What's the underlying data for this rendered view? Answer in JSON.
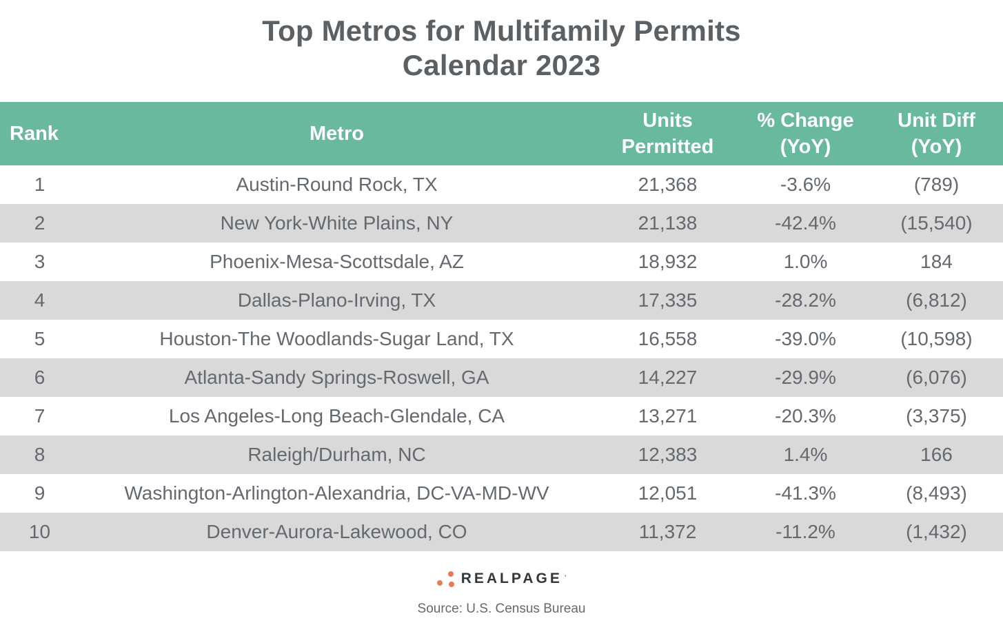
{
  "title": {
    "line1": "Top Metros for Multifamily Permits",
    "line2": "Calendar 2023"
  },
  "table": {
    "columns": [
      {
        "label": "Rank"
      },
      {
        "label": "Metro"
      },
      {
        "label": "Units\nPermitted"
      },
      {
        "label": "% Change\n(YoY)"
      },
      {
        "label": "Unit Diff\n(YoY)"
      }
    ],
    "rows": [
      {
        "rank": "1",
        "metro": "Austin-Round Rock, TX",
        "units": "21,368",
        "pct_change": "-3.6%",
        "unit_diff": "(789)"
      },
      {
        "rank": "2",
        "metro": "New York-White Plains, NY",
        "units": "21,138",
        "pct_change": "-42.4%",
        "unit_diff": "(15,540)"
      },
      {
        "rank": "3",
        "metro": "Phoenix-Mesa-Scottsdale, AZ",
        "units": "18,932",
        "pct_change": "1.0%",
        "unit_diff": "184"
      },
      {
        "rank": "4",
        "metro": "Dallas-Plano-Irving, TX",
        "units": "17,335",
        "pct_change": "-28.2%",
        "unit_diff": "(6,812)"
      },
      {
        "rank": "5",
        "metro": "Houston-The Woodlands-Sugar Land, TX",
        "units": "16,558",
        "pct_change": "-39.0%",
        "unit_diff": "(10,598)"
      },
      {
        "rank": "6",
        "metro": "Atlanta-Sandy Springs-Roswell, GA",
        "units": "14,227",
        "pct_change": "-29.9%",
        "unit_diff": "(6,076)"
      },
      {
        "rank": "7",
        "metro": "Los Angeles-Long Beach-Glendale, CA",
        "units": "13,271",
        "pct_change": "-20.3%",
        "unit_diff": "(3,375)"
      },
      {
        "rank": "8",
        "metro": "Raleigh/Durham, NC",
        "units": "12,383",
        "pct_change": "1.4%",
        "unit_diff": "166"
      },
      {
        "rank": "9",
        "metro": "Washington-Arlington-Alexandria, DC-VA-MD-WV",
        "units": "12,051",
        "pct_change": "-41.3%",
        "unit_diff": "(8,493)"
      },
      {
        "rank": "10",
        "metro": "Denver-Aurora-Lakewood, CO",
        "units": "11,372",
        "pct_change": "-11.2%",
        "unit_diff": "(1,432)"
      }
    ]
  },
  "footer": {
    "logo_text": "REALPAGE",
    "logo_mark": "’",
    "source": "Source: U.S. Census Bureau"
  },
  "colors": {
    "header_bg": "#69B8A0",
    "header_text": "#FFFFFF",
    "row_alt_bg": "#D9D9D9",
    "title_text": "#5B6065",
    "body_text": "#63696F",
    "logo_dot": "#E8795A",
    "logo_text_color": "#32373B"
  },
  "chart_data": {
    "type": "table",
    "title": "Top Metros for Multifamily Permits Calendar 2023",
    "columns": [
      "Rank",
      "Metro",
      "Units Permitted",
      "% Change (YoY)",
      "Unit Diff (YoY)"
    ],
    "rows": [
      [
        1,
        "Austin-Round Rock, TX",
        21368,
        -3.6,
        -789
      ],
      [
        2,
        "New York-White Plains, NY",
        21138,
        -42.4,
        -15540
      ],
      [
        3,
        "Phoenix-Mesa-Scottsdale, AZ",
        18932,
        1.0,
        184
      ],
      [
        4,
        "Dallas-Plano-Irving, TX",
        17335,
        -28.2,
        -6812
      ],
      [
        5,
        "Houston-The Woodlands-Sugar Land, TX",
        16558,
        -39.0,
        -10598
      ],
      [
        6,
        "Atlanta-Sandy Springs-Roswell, GA",
        14227,
        -29.9,
        -6076
      ],
      [
        7,
        "Los Angeles-Long Beach-Glendale, CA",
        13271,
        -20.3,
        -3375
      ],
      [
        8,
        "Raleigh/Durham, NC",
        12383,
        1.4,
        166
      ],
      [
        9,
        "Washington-Arlington-Alexandria, DC-VA-MD-WV",
        12051,
        -41.3,
        -8493
      ],
      [
        10,
        "Denver-Aurora-Lakewood, CO",
        11372,
        -11.2,
        -1432
      ]
    ],
    "notes": "Negative Unit Diff values displayed in parentheses",
    "source": "U.S. Census Bureau"
  }
}
